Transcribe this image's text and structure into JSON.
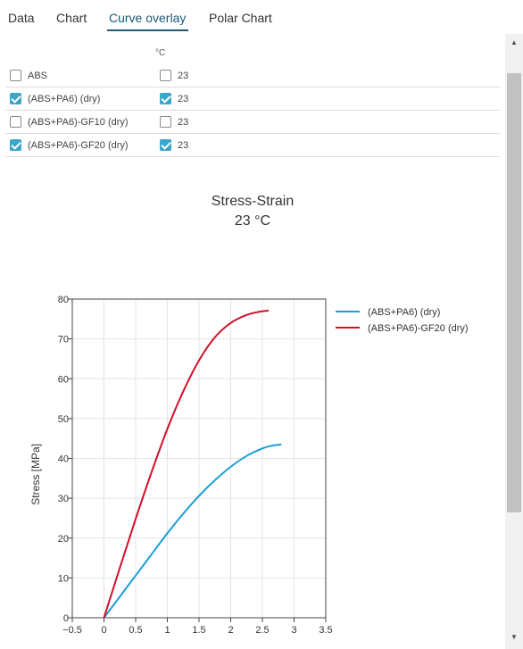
{
  "tabs": [
    {
      "label": "Data"
    },
    {
      "label": "Chart"
    },
    {
      "label": "Curve overlay",
      "active": true
    },
    {
      "label": "Polar Chart"
    }
  ],
  "table": {
    "unit_header": "°C",
    "rows": [
      {
        "label": "ABS",
        "checked": false,
        "temp": "23",
        "temp_checked": false
      },
      {
        "label": "(ABS+PA6) (dry)",
        "checked": true,
        "temp": "23",
        "temp_checked": true
      },
      {
        "label": "(ABS+PA6)-GF10 (dry)",
        "checked": false,
        "temp": "23",
        "temp_checked": false
      },
      {
        "label": "(ABS+PA6)-GF20 (dry)",
        "checked": true,
        "temp": "23",
        "temp_checked": true
      }
    ]
  },
  "colors": {
    "accent": "#1a5a7a",
    "checkbox": "#3aa6c9",
    "series_1": "#1a9fd6",
    "series_2": "#d0102a"
  },
  "chart_data": {
    "type": "line",
    "title": "Stress-Strain",
    "subtitle": "23 °C",
    "xlabel": "",
    "ylabel": "Stress [MPa]",
    "xlim": [
      -0.5,
      3.5
    ],
    "ylim": [
      0,
      80
    ],
    "x_ticks": [
      "−0.5",
      "0",
      "0.5",
      "1",
      "1.5",
      "2",
      "2.5",
      "3",
      "3.5"
    ],
    "y_ticks": [
      "0",
      "10",
      "20",
      "30",
      "40",
      "50",
      "60",
      "70",
      "80"
    ],
    "grid": true,
    "legend_position": "top-right",
    "series": [
      {
        "name": "(ABS+PA6) (dry)",
        "color": "#1a9fd6",
        "points": [
          [
            0,
            0
          ],
          [
            0.25,
            5.3
          ],
          [
            0.5,
            10.6
          ],
          [
            0.75,
            15.9
          ],
          [
            1.0,
            21.2
          ],
          [
            1.25,
            26.1
          ],
          [
            1.5,
            30.6
          ],
          [
            1.75,
            34.5
          ],
          [
            2.0,
            37.9
          ],
          [
            2.25,
            40.6
          ],
          [
            2.5,
            42.5
          ],
          [
            2.65,
            43.2
          ],
          [
            2.8,
            43.5
          ]
        ]
      },
      {
        "name": "(ABS+PA6)-GF20 (dry)",
        "color": "#d0102a",
        "points": [
          [
            0,
            0
          ],
          [
            0.25,
            12.5
          ],
          [
            0.5,
            24.8
          ],
          [
            0.75,
            36.5
          ],
          [
            1.0,
            47.4
          ],
          [
            1.25,
            56.8
          ],
          [
            1.5,
            64.6
          ],
          [
            1.75,
            70.4
          ],
          [
            2.0,
            74.0
          ],
          [
            2.25,
            76.0
          ],
          [
            2.45,
            76.8
          ],
          [
            2.6,
            77.1
          ]
        ]
      }
    ]
  }
}
